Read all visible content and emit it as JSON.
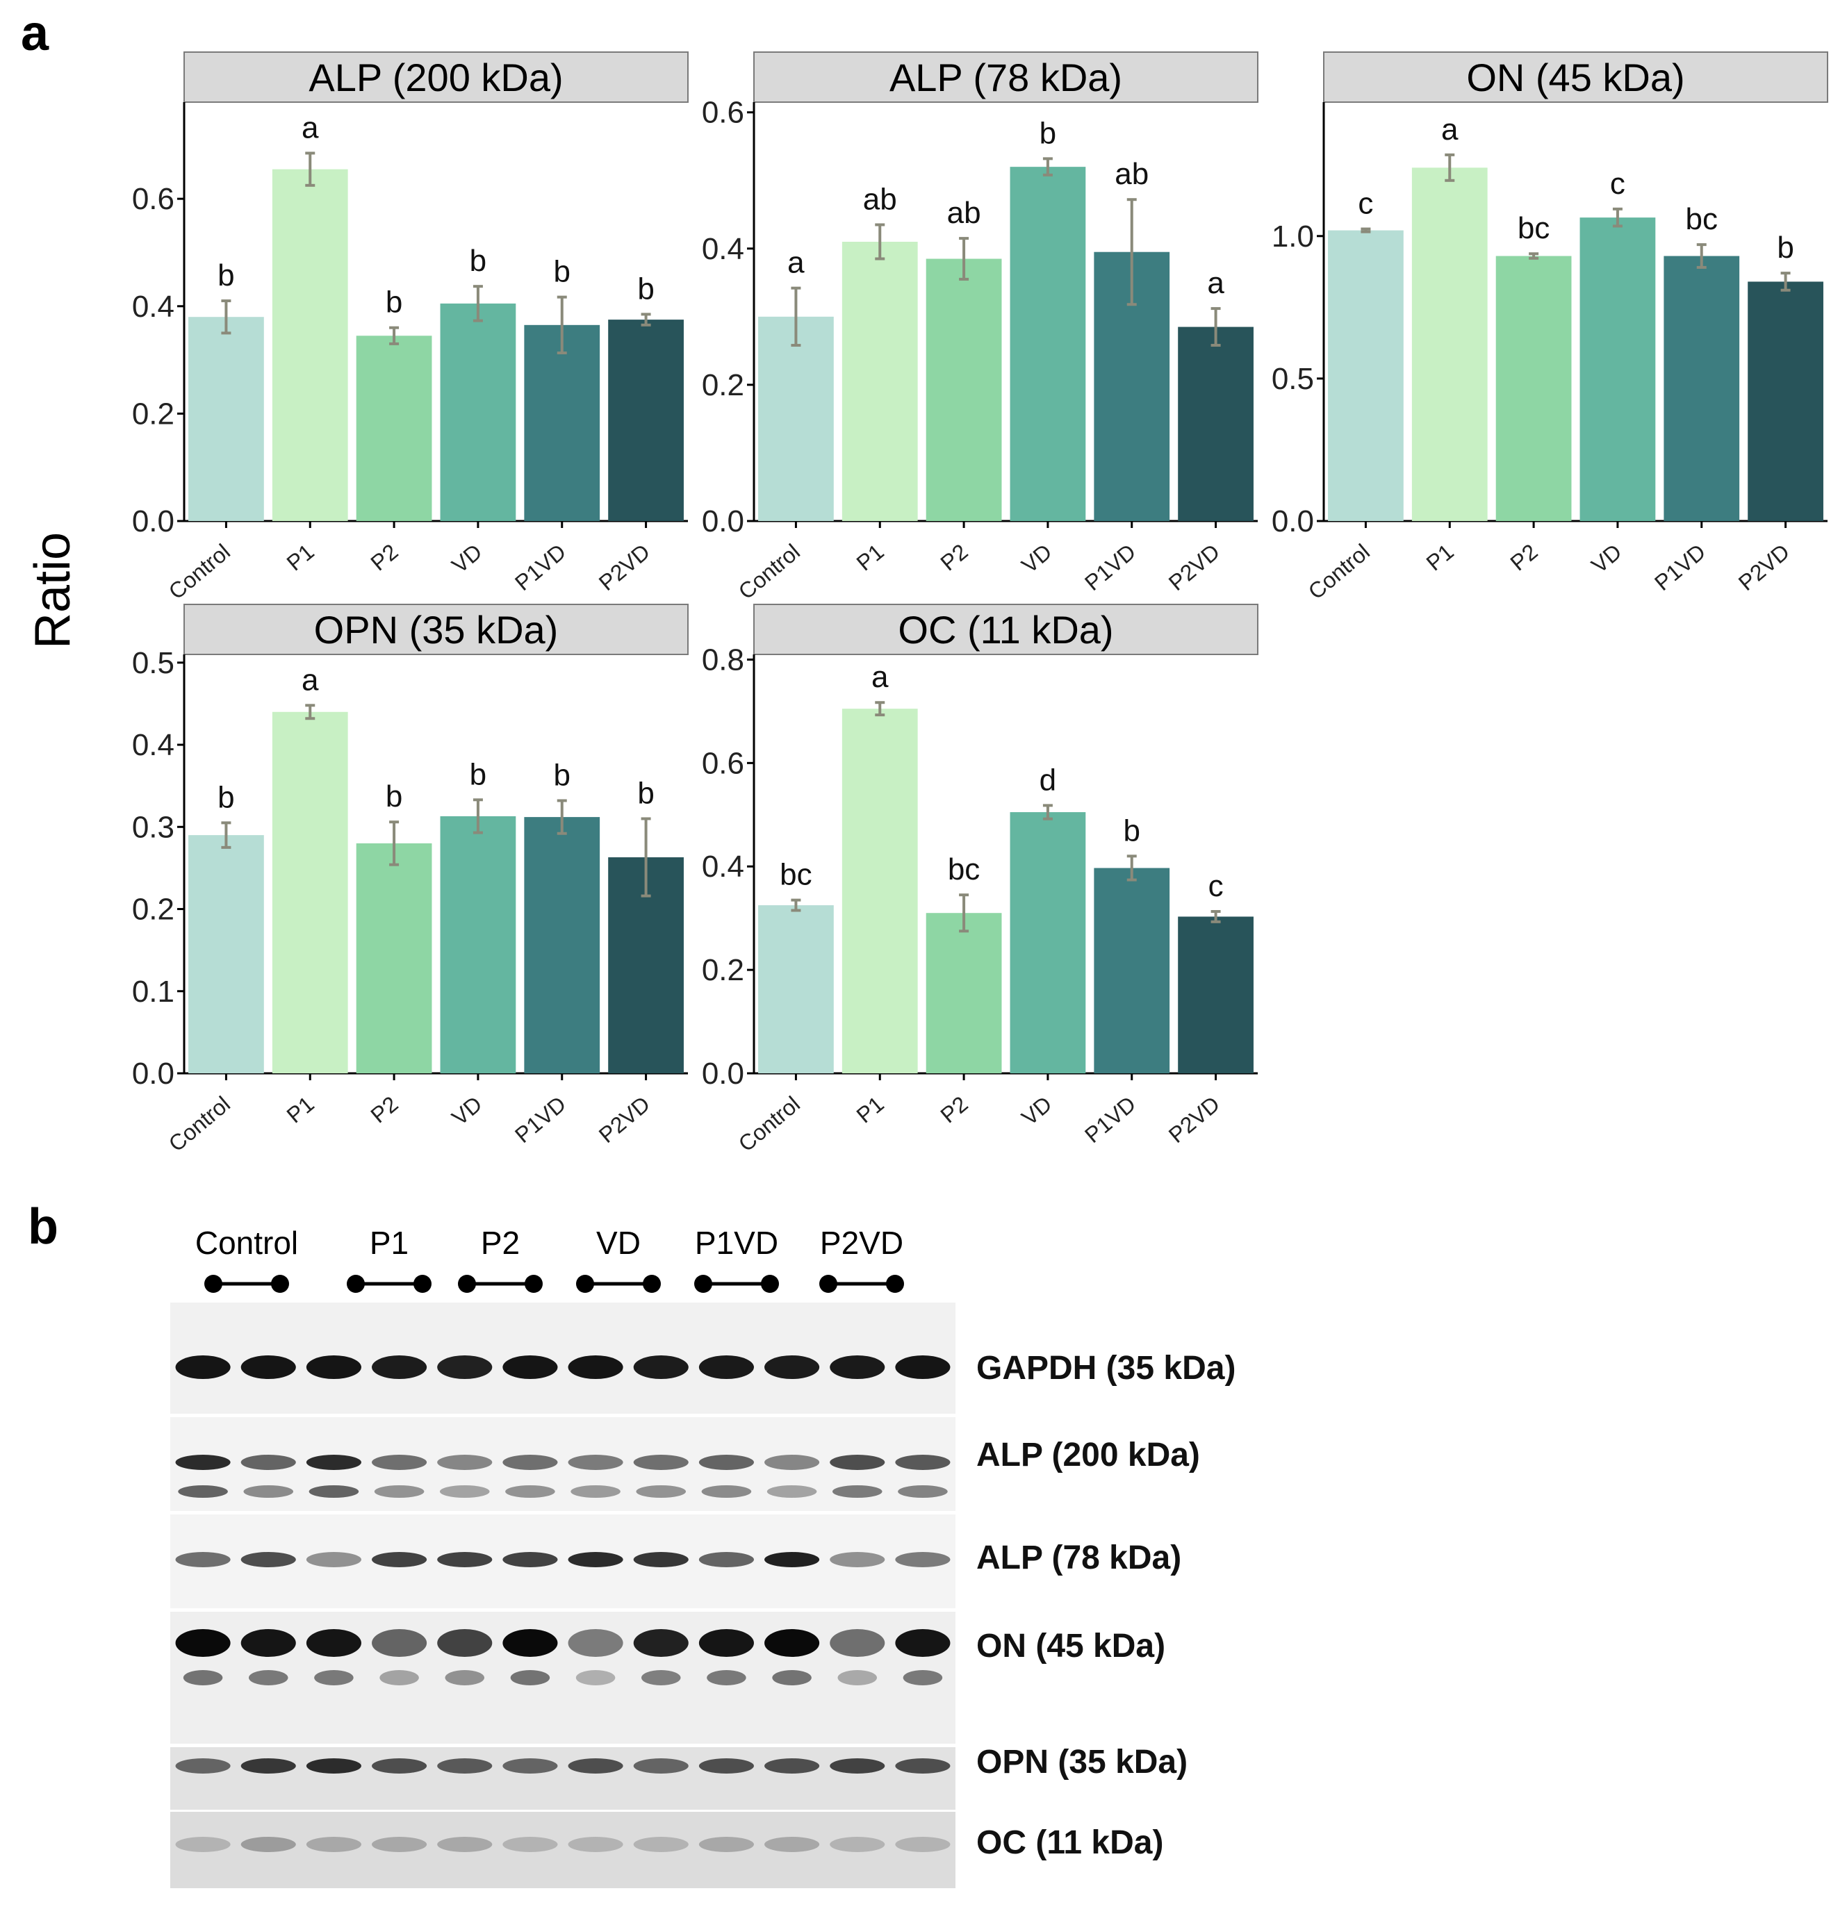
{
  "figure": {
    "panel_a_letter": "a",
    "panel_b_letter": "b",
    "y_axis_label": "Ratio"
  },
  "colors": {
    "Control": "#b6ddd5",
    "P1": "#c8f0c4",
    "P2": "#8ed6a4",
    "VD": "#64b6a0",
    "P1VD": "#3d7d80",
    "P2VD": "#28545a",
    "error_bar": "#8a8a7a",
    "facet_strip": "#d9d9d9"
  },
  "chart_data": [
    {
      "type": "bar",
      "title": "ALP (200 kDa)",
      "ylabel": "Ratio",
      "categories": [
        "Control",
        "P1",
        "P2",
        "VD",
        "P1VD",
        "P2VD"
      ],
      "values": [
        0.38,
        0.655,
        0.345,
        0.405,
        0.365,
        0.375
      ],
      "errors": [
        0.03,
        0.03,
        0.015,
        0.032,
        0.052,
        0.01
      ],
      "letters": [
        "b",
        "a",
        "b",
        "b",
        "b",
        "b"
      ],
      "ylim": [
        0,
        0.78
      ],
      "yticks": [
        0.0,
        0.2,
        0.4,
        0.6
      ],
      "ytick_labels": [
        "0.0",
        "0.2",
        "0.4",
        "0.6"
      ]
    },
    {
      "type": "bar",
      "title": "ALP (78 kDa)",
      "ylabel": "Ratio",
      "categories": [
        "Control",
        "P1",
        "P2",
        "VD",
        "P1VD",
        "P2VD"
      ],
      "values": [
        0.3,
        0.41,
        0.385,
        0.52,
        0.395,
        0.285
      ],
      "errors": [
        0.042,
        0.025,
        0.03,
        0.012,
        0.077,
        0.027
      ],
      "letters": [
        "a",
        "ab",
        "ab",
        "b",
        "ab",
        "a"
      ],
      "ylim": [
        0,
        0.615
      ],
      "yticks": [
        0.0,
        0.2,
        0.4,
        0.6
      ],
      "ytick_labels": [
        "0.0",
        "0.2",
        "0.4",
        "0.6"
      ]
    },
    {
      "type": "bar",
      "title": "ON (45 kDa)",
      "ylabel": "Ratio",
      "categories": [
        "Control",
        "P1",
        "P2",
        "VD",
        "P1VD",
        "P2VD"
      ],
      "values": [
        1.02,
        1.24,
        0.93,
        1.065,
        0.93,
        0.84
      ],
      "errors": [
        0.005,
        0.045,
        0.008,
        0.03,
        0.04,
        0.03
      ],
      "letters": [
        "c",
        "a",
        "bc",
        "c",
        "bc",
        "b"
      ],
      "ylim": [
        0,
        1.47
      ],
      "yticks": [
        0.0,
        0.5,
        1.0
      ],
      "ytick_labels": [
        "0.0",
        "0.5",
        "1.0"
      ]
    },
    {
      "type": "bar",
      "title": "OPN (35 kDa)",
      "ylabel": "Ratio",
      "categories": [
        "Control",
        "P1",
        "P2",
        "VD",
        "P1VD",
        "P2VD"
      ],
      "values": [
        0.29,
        0.44,
        0.28,
        0.313,
        0.312,
        0.263
      ],
      "errors": [
        0.015,
        0.008,
        0.026,
        0.02,
        0.02,
        0.047
      ],
      "letters": [
        "b",
        "a",
        "b",
        "b",
        "b",
        "b"
      ],
      "ylim": [
        0,
        0.51
      ],
      "yticks": [
        0.0,
        0.1,
        0.2,
        0.3,
        0.4,
        0.5
      ],
      "ytick_labels": [
        "0.0",
        "0.1",
        "0.2",
        "0.3",
        "0.4",
        "0.5"
      ]
    },
    {
      "type": "bar",
      "title": "OC (11 kDa)",
      "ylabel": "Ratio",
      "categories": [
        "Control",
        "P1",
        "P2",
        "VD",
        "P1VD",
        "P2VD"
      ],
      "values": [
        0.325,
        0.705,
        0.31,
        0.505,
        0.397,
        0.303
      ],
      "errors": [
        0.01,
        0.012,
        0.035,
        0.013,
        0.023,
        0.01
      ],
      "letters": [
        "bc",
        "a",
        "bc",
        "d",
        "b",
        "c"
      ],
      "ylim": [
        0,
        0.81
      ],
      "yticks": [
        0.0,
        0.2,
        0.4,
        0.6,
        0.8
      ],
      "ytick_labels": [
        "0.0",
        "0.2",
        "0.4",
        "0.6",
        "0.8"
      ]
    }
  ],
  "western_blot": {
    "lane_groups": [
      "Control",
      "P1",
      "P2",
      "VD",
      "P1VD",
      "P2VD"
    ],
    "bands": [
      {
        "label": "GAPDH (35 kDa)",
        "intensity": [
          0.95,
          0.95,
          0.95,
          0.92,
          0.9,
          0.95,
          0.95,
          0.92,
          0.93,
          0.92,
          0.93,
          0.95
        ]
      },
      {
        "label": "ALP (200 kDa)",
        "intensity": [
          0.85,
          0.6,
          0.85,
          0.55,
          0.45,
          0.55,
          0.5,
          0.55,
          0.6,
          0.45,
          0.7,
          0.65
        ]
      },
      {
        "label": "ALP (78 kDa)",
        "intensity": [
          0.55,
          0.7,
          0.4,
          0.75,
          0.75,
          0.75,
          0.85,
          0.8,
          0.6,
          0.9,
          0.4,
          0.5
        ]
      },
      {
        "label": "ON (45 kDa)",
        "intensity": [
          1.0,
          0.95,
          0.95,
          0.6,
          0.75,
          1.0,
          0.5,
          0.9,
          0.95,
          1.0,
          0.55,
          0.95
        ]
      },
      {
        "label": "OPN (35 kDa)",
        "intensity": [
          0.6,
          0.8,
          0.85,
          0.7,
          0.65,
          0.6,
          0.7,
          0.6,
          0.7,
          0.7,
          0.75,
          0.7
        ]
      },
      {
        "label": "OC (11 kDa)",
        "intensity": [
          0.25,
          0.35,
          0.3,
          0.3,
          0.3,
          0.25,
          0.25,
          0.25,
          0.3,
          0.3,
          0.25,
          0.25
        ]
      }
    ]
  }
}
